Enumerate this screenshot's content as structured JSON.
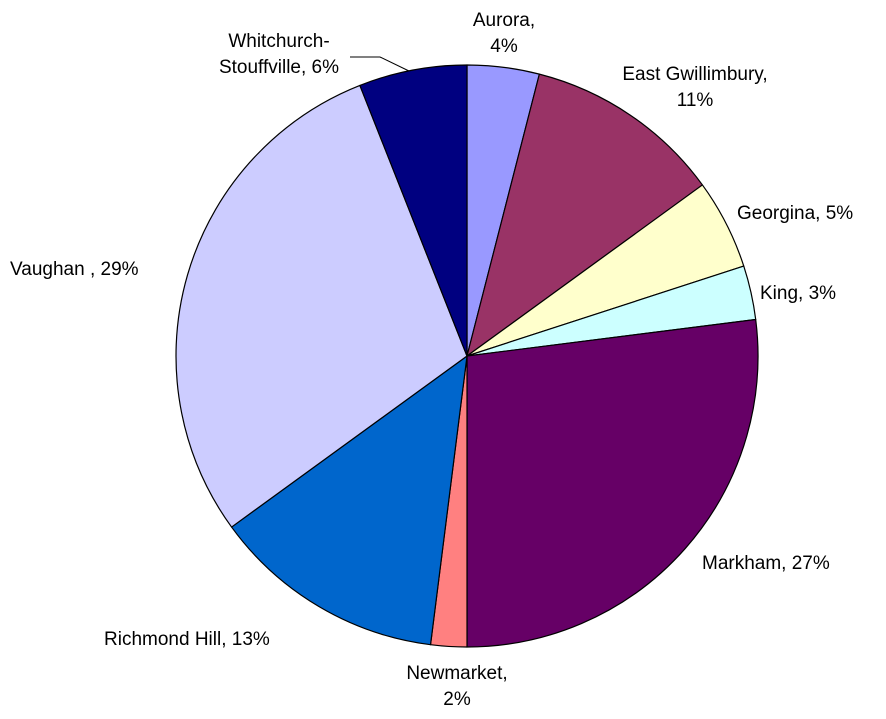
{
  "chart_data": {
    "type": "pie",
    "start": "top",
    "direction": "clockwise",
    "slices": [
      {
        "label": "Aurora",
        "display": [
          "Aurora,",
          "4%"
        ],
        "value": 4,
        "color": "#9999ff"
      },
      {
        "label": "East Gwillimbury",
        "display": [
          "East Gwillimbury,",
          "11%"
        ],
        "value": 11,
        "color": "#993366"
      },
      {
        "label": "Georgina",
        "display": [
          "Georgina, 5%"
        ],
        "value": 5,
        "color": "#ffffcc"
      },
      {
        "label": "King",
        "display": [
          "King, 3%"
        ],
        "value": 3,
        "color": "#ccffff"
      },
      {
        "label": "Markham",
        "display": [
          "Markham, 27%"
        ],
        "value": 27,
        "color": "#660066"
      },
      {
        "label": "Newmarket",
        "display": [
          "Newmarket,",
          "2%"
        ],
        "value": 2,
        "color": "#ff8080"
      },
      {
        "label": "Richmond Hill",
        "display": [
          "Richmond Hill, 13%"
        ],
        "value": 13,
        "color": "#0066cc"
      },
      {
        "label": "Vaughan",
        "display": [
          "Vaughan , 29%"
        ],
        "value": 29,
        "color": "#ccccff"
      },
      {
        "label": "Whitchurch-Stouffville",
        "display": [
          "Whitchurch-",
          "Stouffville, 6%"
        ],
        "value": 6,
        "color": "#000080"
      }
    ]
  }
}
